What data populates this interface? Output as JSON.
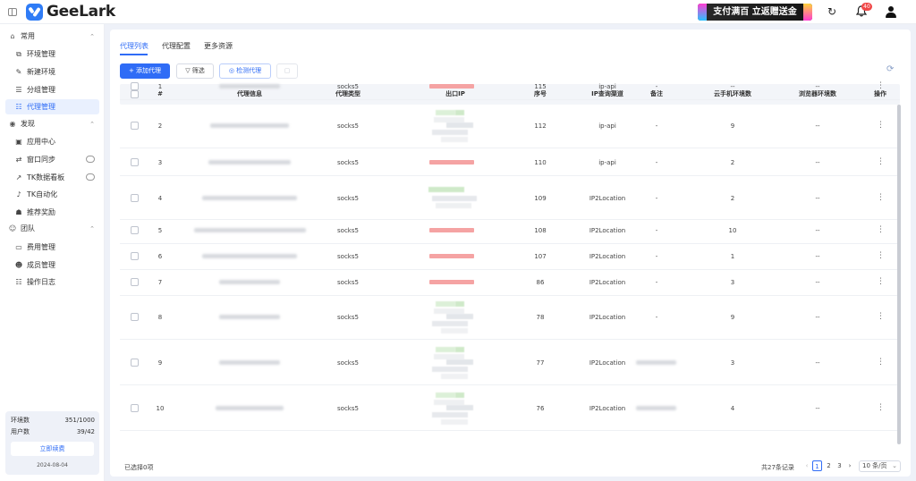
{
  "brand": {
    "name": "GeeLark"
  },
  "promo": {
    "text": "支付满百 立返赠送金"
  },
  "notifications": {
    "badge": "40"
  },
  "sidebar": {
    "sections": [
      {
        "label": "常用",
        "icon": "home-icon",
        "items": [
          {
            "label": "环境管理",
            "icon": "copy-icon"
          },
          {
            "label": "新建环境",
            "icon": "edit-icon"
          },
          {
            "label": "分组管理",
            "icon": "list-icon"
          },
          {
            "label": "代理管理",
            "icon": "proxy-icon",
            "active": true
          }
        ]
      },
      {
        "label": "发现",
        "icon": "eye-icon",
        "items": [
          {
            "label": "应用中心",
            "icon": "app-icon"
          },
          {
            "label": "窗口同步",
            "icon": "sync-icon",
            "vip": true
          },
          {
            "label": "TK数据看板",
            "icon": "chart-icon",
            "vip": true
          },
          {
            "label": "TK自动化",
            "icon": "tiktok-icon"
          },
          {
            "label": "推荐奖励",
            "icon": "gift-icon"
          }
        ]
      },
      {
        "label": "团队",
        "icon": "team-icon",
        "items": [
          {
            "label": "费用管理",
            "icon": "wallet-icon"
          },
          {
            "label": "成员管理",
            "icon": "member-icon"
          },
          {
            "label": "操作日志",
            "icon": "log-icon"
          }
        ]
      }
    ],
    "footer": {
      "env_label": "环境数",
      "env_value": "351/1000",
      "user_label": "用户数",
      "user_value": "39/42",
      "renew_label": "立即续费",
      "date": "2024-08-04"
    }
  },
  "tabs": [
    {
      "label": "代理列表",
      "active": true
    },
    {
      "label": "代理配置"
    },
    {
      "label": "更多资源"
    }
  ],
  "toolbar": {
    "add_label": "添加代理",
    "filter_label": "筛选",
    "check_label": "检测代理"
  },
  "table": {
    "headers": [
      "#",
      "代理信息",
      "代理类型",
      "出口IP",
      "序号",
      "IP查询渠道",
      "备注",
      "云手机环境数",
      "浏览器环境数",
      "操作"
    ],
    "rows": [
      {
        "no": "1",
        "type": "socks5",
        "seq": "115",
        "channel": "ip-api",
        "note": "-",
        "cloud": "--",
        "browser": "--"
      },
      {
        "no": "2",
        "type": "socks5",
        "seq": "112",
        "channel": "ip-api",
        "note": "-",
        "cloud": "9",
        "browser": "--"
      },
      {
        "no": "3",
        "type": "socks5",
        "seq": "110",
        "channel": "ip-api",
        "note": "-",
        "cloud": "2",
        "browser": "--"
      },
      {
        "no": "4",
        "type": "socks5",
        "seq": "109",
        "channel": "IP2Location",
        "note": "-",
        "cloud": "2",
        "browser": "--"
      },
      {
        "no": "5",
        "type": "socks5",
        "seq": "108",
        "channel": "IP2Location",
        "note": "-",
        "cloud": "10",
        "browser": "--"
      },
      {
        "no": "6",
        "type": "socks5",
        "seq": "107",
        "channel": "IP2Location",
        "note": "-",
        "cloud": "1",
        "browser": "--"
      },
      {
        "no": "7",
        "type": "socks5",
        "seq": "86",
        "channel": "IP2Location",
        "note": "-",
        "cloud": "3",
        "browser": "--"
      },
      {
        "no": "8",
        "type": "socks5",
        "seq": "78",
        "channel": "IP2Location",
        "note": "-",
        "cloud": "9",
        "browser": "--"
      },
      {
        "no": "9",
        "type": "socks5",
        "seq": "77",
        "channel": "IP2Location",
        "note": "",
        "cloud": "3",
        "browser": "--"
      },
      {
        "no": "10",
        "type": "socks5",
        "seq": "76",
        "channel": "IP2Location",
        "note": "",
        "cloud": "4",
        "browser": "--"
      }
    ]
  },
  "footer": {
    "selected": "已选择0项",
    "total": "共27条记录",
    "pages": [
      "1",
      "2",
      "3"
    ],
    "page_size": "10 条/页"
  },
  "colors": {
    "accent": "#2f6cf6",
    "ip_bar": "#f5a3a3"
  }
}
